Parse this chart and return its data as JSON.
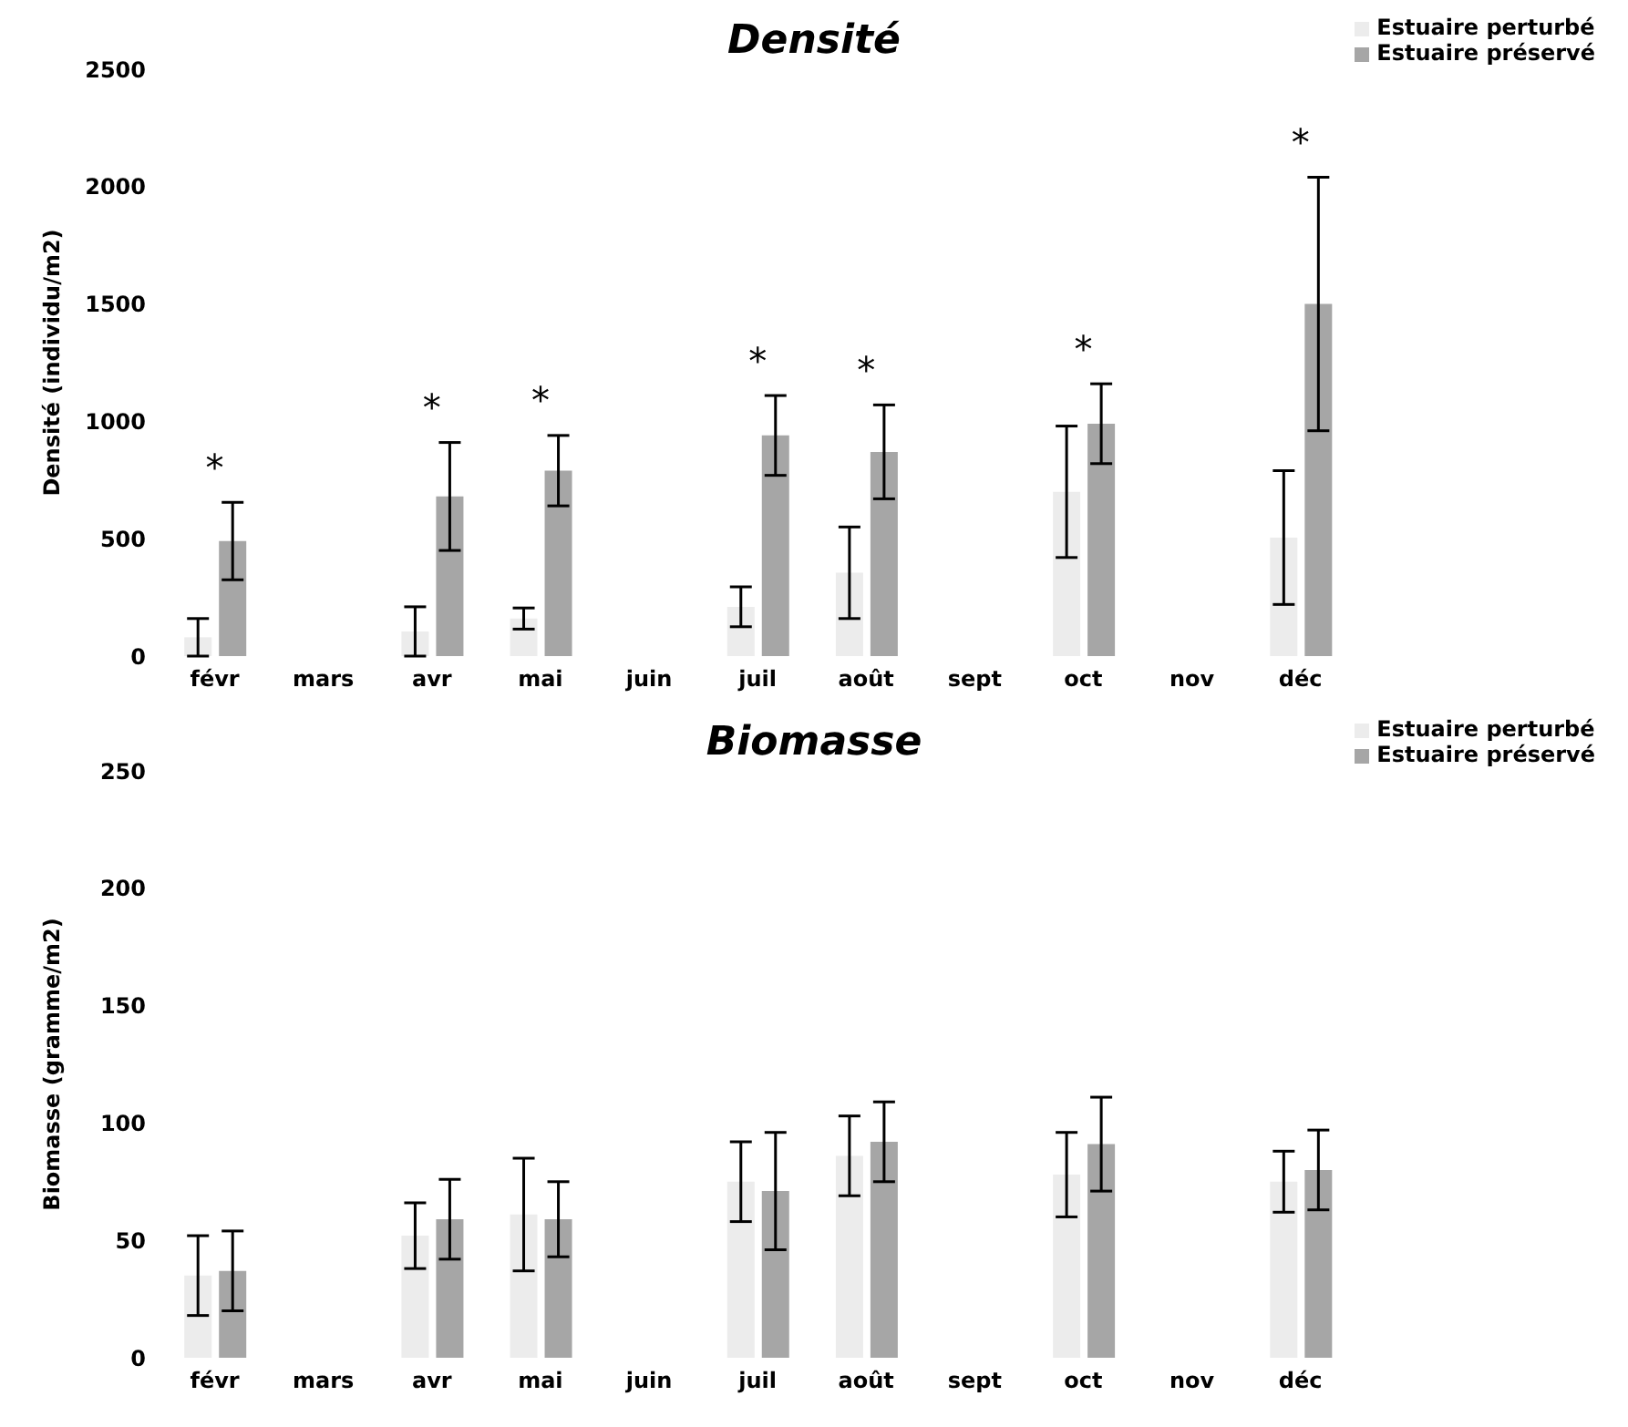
{
  "chart_data": [
    {
      "type": "bar",
      "title": "Densité",
      "ylabel": "Densité  (individu/m2)",
      "categories": [
        "févr",
        "mars",
        "avr",
        "mai",
        "juin",
        "juil",
        "août",
        "sept",
        "oct",
        "nov",
        "déc"
      ],
      "series": [
        {
          "name": "Estuaire perturbé",
          "color": "#ececec",
          "values": [
            80,
            null,
            105,
            160,
            null,
            210,
            355,
            null,
            700,
            null,
            505
          ],
          "errors": [
            80,
            null,
            105,
            45,
            null,
            85,
            195,
            null,
            280,
            null,
            285
          ]
        },
        {
          "name": "Estuaire préservé",
          "color": "#a6a6a6",
          "values": [
            490,
            null,
            680,
            790,
            null,
            940,
            870,
            null,
            990,
            null,
            1500
          ],
          "errors": [
            165,
            null,
            230,
            150,
            null,
            170,
            200,
            null,
            170,
            null,
            540
          ]
        }
      ],
      "ylim": [
        0,
        2500
      ],
      "yticks": [
        0,
        500,
        1000,
        1500,
        2000,
        2500
      ],
      "legend": "top right",
      "annotations": [
        "*",
        "*",
        "*",
        "*",
        "*",
        "*",
        "*"
      ]
    },
    {
      "type": "bar",
      "title": "Biomasse",
      "ylabel": "Biomasse (gramme/m2)",
      "categories": [
        "févr",
        "mars",
        "avr",
        "mai",
        "juin",
        "juil",
        "août",
        "sept",
        "oct",
        "nov",
        "déc"
      ],
      "series": [
        {
          "name": "Estuaire perturbé",
          "color": "#ececec",
          "values": [
            35,
            null,
            52,
            61,
            null,
            75,
            86,
            null,
            78,
            null,
            75
          ],
          "errors": [
            17,
            null,
            14,
            24,
            null,
            17,
            17,
            null,
            18,
            null,
            13
          ]
        },
        {
          "name": "Estuaire préservé",
          "color": "#a6a6a6",
          "values": [
            37,
            null,
            59,
            59,
            null,
            71,
            92,
            null,
            91,
            null,
            80
          ],
          "errors": [
            17,
            null,
            17,
            16,
            null,
            25,
            17,
            null,
            20,
            null,
            17
          ]
        }
      ],
      "ylim": [
        0,
        250
      ],
      "yticks": [
        0,
        50,
        100,
        150,
        200,
        250
      ],
      "legend": "top right"
    }
  ]
}
